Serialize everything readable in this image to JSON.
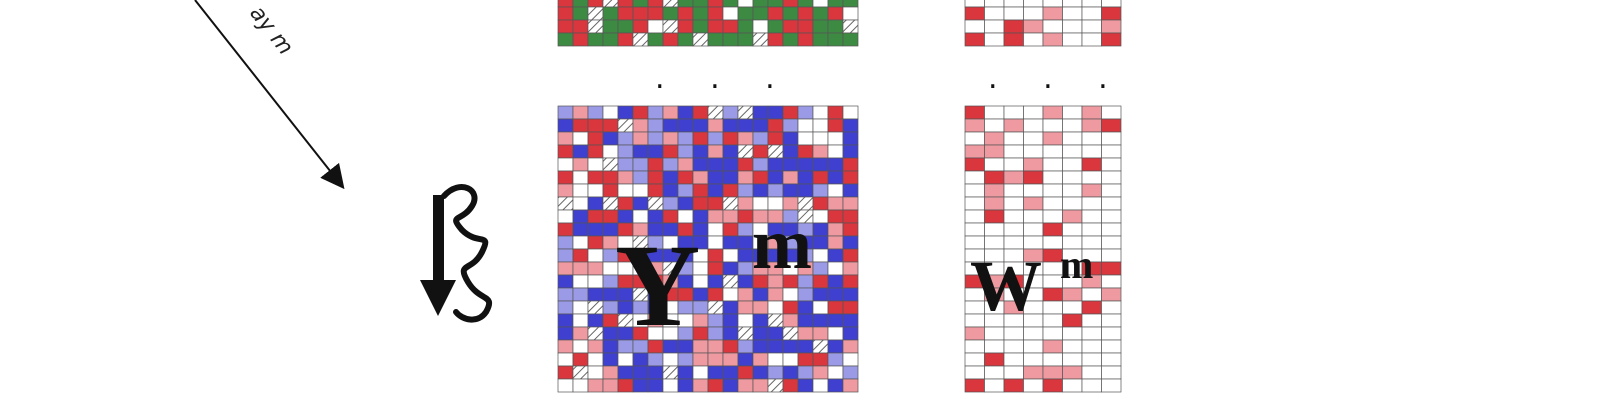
{
  "arrow": {
    "label": "ay m"
  },
  "ellipsis": {
    "left": ". . .",
    "right": ". . ."
  },
  "matrix_y": {
    "letter": "Y",
    "superscript": "m"
  },
  "matrix_w": {
    "letter": "W",
    "superscript": "m"
  },
  "colors": {
    "red": "#d9363e",
    "light_red": "#ef9aa0",
    "blue": "#3f3fd0",
    "light_blue": "#9a9ae6",
    "green": "#3d8a43",
    "grid_line": "#555555",
    "white": "#ffffff"
  }
}
